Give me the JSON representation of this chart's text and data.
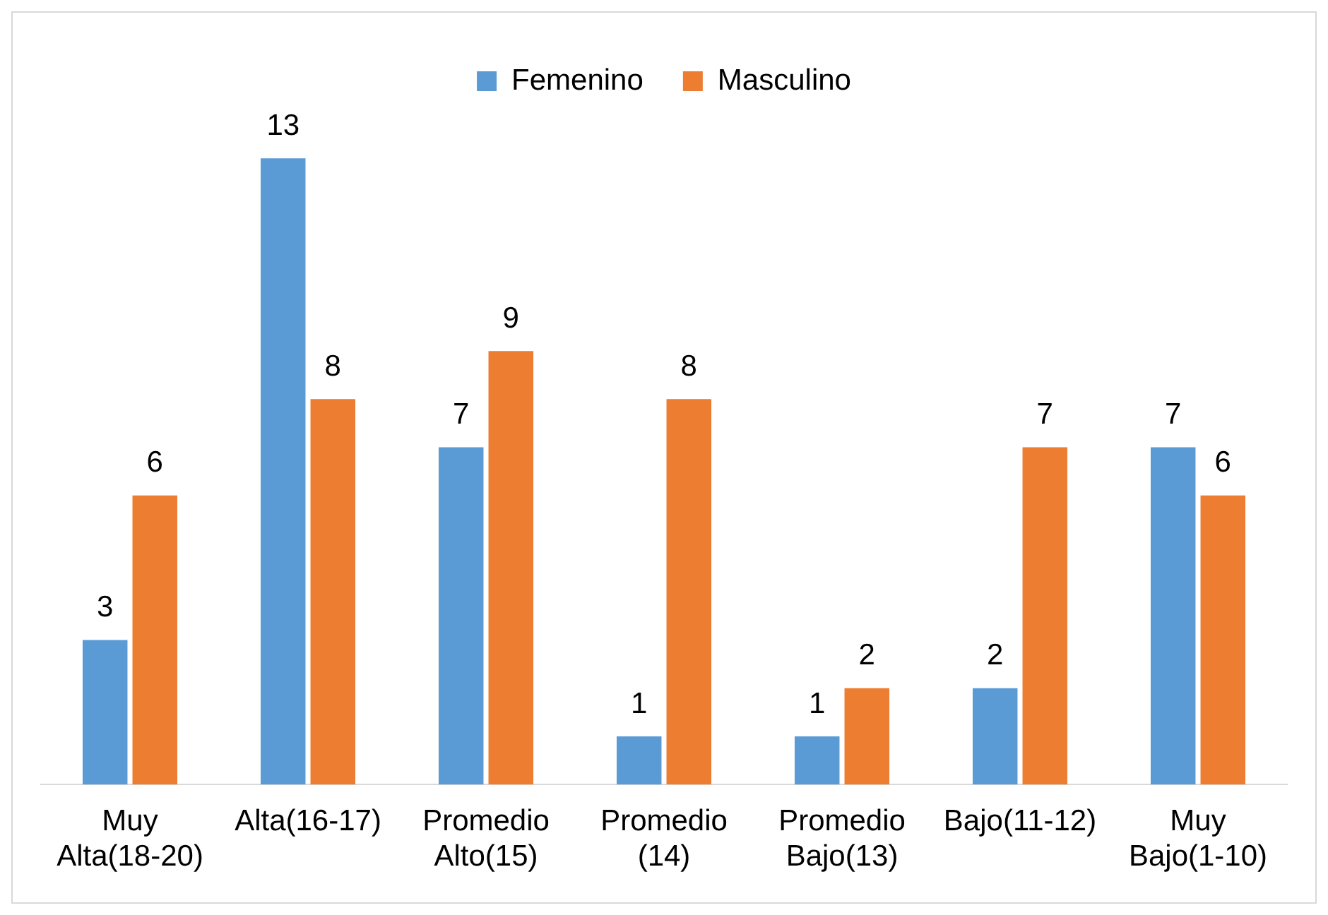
{
  "chart_data": {
    "type": "bar",
    "categories": [
      "Muy Alta(18-20)",
      "Alta(16-17)",
      "Promedio Alto(15)",
      "Promedio (14)",
      "Promedio Bajo(13)",
      "Bajo(11-12)",
      "Muy Bajo(1-10)"
    ],
    "series": [
      {
        "name": "Femenino",
        "color": "#5b9bd5",
        "values": [
          3,
          13,
          7,
          1,
          1,
          2,
          7
        ]
      },
      {
        "name": "Masculino",
        "color": "#ed7d31",
        "values": [
          6,
          8,
          9,
          8,
          2,
          7,
          6
        ]
      }
    ],
    "data_labels": true,
    "legend": "top",
    "grid": false,
    "tick_labels": "x"
  }
}
